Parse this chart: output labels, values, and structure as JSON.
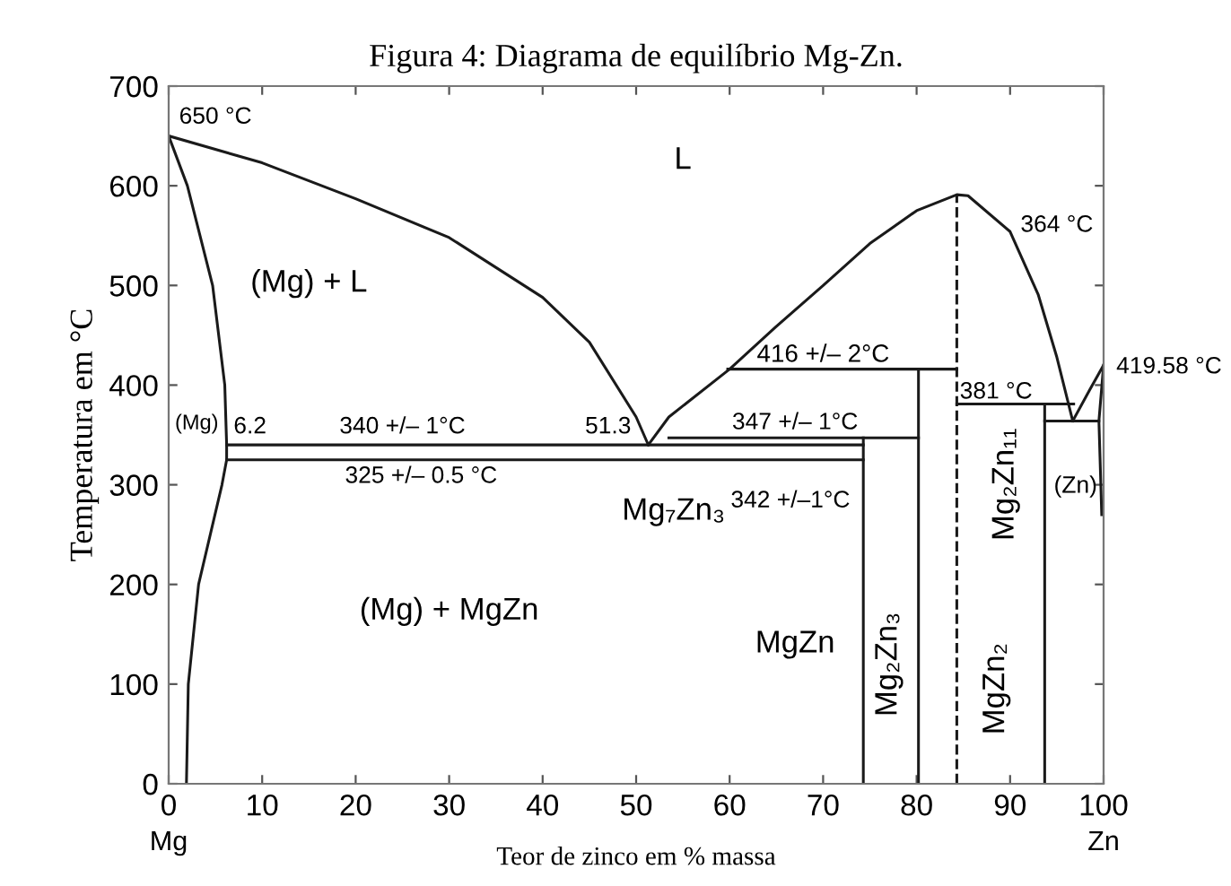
{
  "chart_data": {
    "type": "line",
    "title": "Figura 4: Diagrama de equilíbrio Mg-Zn.",
    "xlabel": "Teor de zinco em % massa",
    "ylabel": "Temperatura em °C",
    "xlim": [
      0,
      100
    ],
    "ylim": [
      0,
      700
    ],
    "xticks": [
      0,
      10,
      20,
      30,
      40,
      50,
      60,
      70,
      80,
      90,
      100
    ],
    "yticks": [
      0,
      100,
      200,
      300,
      400,
      500,
      600,
      700
    ],
    "grid": false,
    "legend": false,
    "marker": "none",
    "line_style": "solid",
    "series": [
      {
        "color": "#1a1a1a",
        "x": [
          0,
          10,
          20,
          30,
          40,
          45,
          50,
          51.3
        ],
        "values": [
          650,
          623,
          587,
          548,
          488,
          443,
          368,
          340
        ]
      },
      {
        "color": "#1a1a1a",
        "x": [
          0,
          2,
          4.7,
          6.0,
          6.2,
          6.2,
          5.7,
          3.2,
          2.1,
          1.9
        ],
        "values": [
          650,
          600,
          500,
          400,
          340,
          325,
          300,
          200,
          100,
          0
        ]
      },
      {
        "color": "#1a1a1a",
        "x": [
          6.2,
          74.3
        ],
        "values": [
          340,
          340
        ]
      },
      {
        "color": "#1a1a1a",
        "x": [
          6.2,
          74.3
        ],
        "values": [
          325,
          325
        ]
      },
      {
        "color": "#1a1a1a",
        "x": [
          51.3,
          53.5,
          60,
          64.9,
          70,
          75,
          80,
          84.3,
          85.5,
          90,
          93,
          95,
          96.7
        ],
        "values": [
          340,
          368,
          416,
          458,
          500,
          542,
          575,
          591,
          590,
          554,
          491,
          428,
          364
        ]
      },
      {
        "color": "#1a1a1a",
        "x": [
          53.5,
          80.2
        ],
        "values": [
          347,
          347
        ]
      },
      {
        "color": "#1a1a1a",
        "x": [
          59.8,
          84.3
        ],
        "values": [
          416,
          416
        ]
      },
      {
        "color": "#1a1a1a",
        "x": [
          74.3,
          74.3
        ],
        "values": [
          0,
          347
        ]
      },
      {
        "color": "#1a1a1a",
        "x": [
          80.2,
          80.2
        ],
        "values": [
          0,
          416
        ]
      },
      {
        "color": "#1a1a1a",
        "x": [
          84.3,
          84.3
        ],
        "values": [
          0,
          591
        ],
        "line_style": "dashed"
      },
      {
        "color": "#1a1a1a",
        "x": [
          93.7,
          93.7
        ],
        "values": [
          0,
          381
        ]
      },
      {
        "color": "#1a1a1a",
        "x": [
          84.3,
          96.8
        ],
        "values": [
          381,
          381
        ]
      },
      {
        "color": "#1a1a1a",
        "x": [
          93.7,
          99.5
        ],
        "values": [
          364,
          364
        ]
      },
      {
        "color": "#1a1a1a",
        "x": [
          96.7,
          98.5,
          100
        ],
        "values": [
          364,
          395,
          420
        ]
      },
      {
        "color": "#1a1a1a",
        "x": [
          100,
          99.5,
          99.8
        ],
        "values": [
          420,
          364,
          270
        ]
      }
    ],
    "annotations": [
      "650 °C",
      "L",
      "(Mg) + L",
      "(Mg)",
      "6.2",
      "340 +/– 1°C",
      "51.3",
      "325 +/– 0.5 °C",
      "Mg₇Zn₃",
      "(Mg) + MgZn",
      "347 +/– 1°C",
      "416 +/– 2°C",
      "342 +/–1°C",
      "364 °C",
      "419.58 °C",
      "381 °C",
      "Mg₂Zn₁₁",
      "(Zn)",
      "MgZn",
      "Mg₂Zn₃",
      "MgZn₂",
      "Mg",
      "Zn"
    ]
  }
}
